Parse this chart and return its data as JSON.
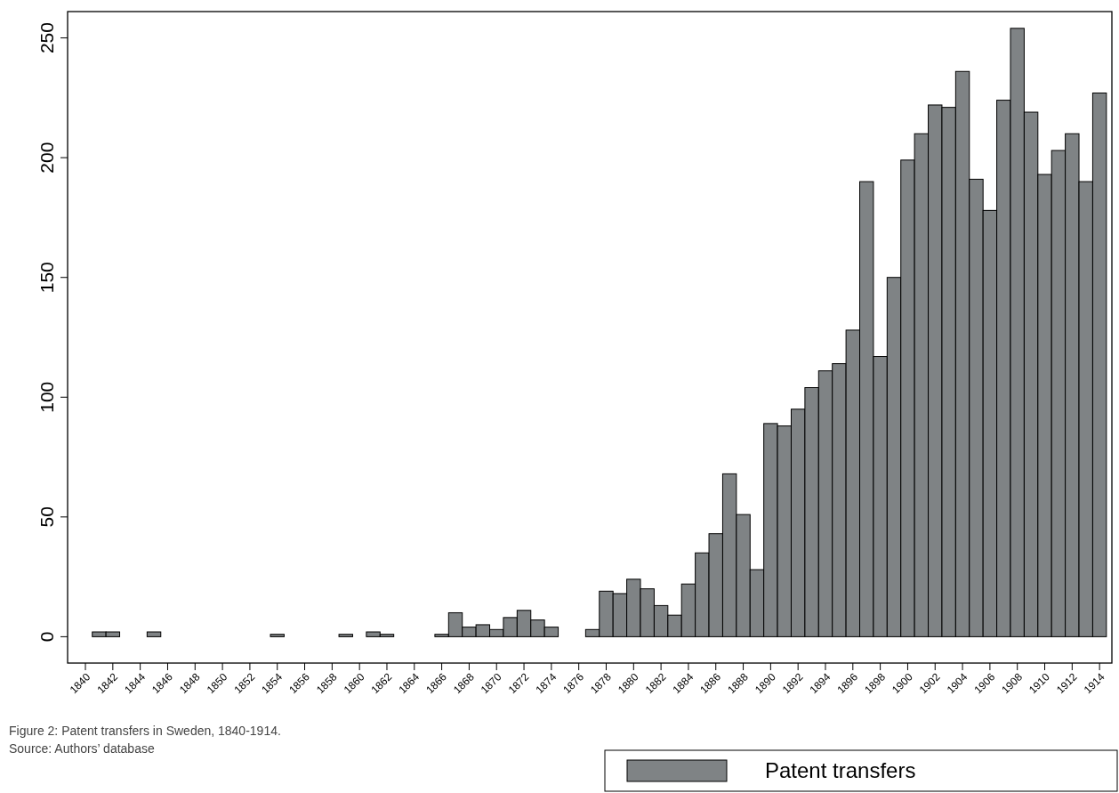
{
  "chart_data": {
    "type": "bar",
    "x": [
      1841,
      1842,
      1845,
      1854,
      1859,
      1861,
      1862,
      1866,
      1867,
      1868,
      1869,
      1870,
      1871,
      1872,
      1873,
      1874,
      1877,
      1878,
      1879,
      1880,
      1881,
      1882,
      1883,
      1884,
      1885,
      1886,
      1887,
      1888,
      1889,
      1890,
      1891,
      1892,
      1893,
      1894,
      1895,
      1896,
      1897,
      1898,
      1899,
      1900,
      1901,
      1902,
      1903,
      1904,
      1905,
      1906,
      1907,
      1908,
      1909,
      1910,
      1911,
      1912,
      1913,
      1914
    ],
    "series": [
      {
        "name": "Patent transfers",
        "color": "#7f8385",
        "values": [
          2,
          2,
          2,
          1,
          1,
          2,
          1,
          1,
          10,
          4,
          5,
          3,
          8,
          11,
          7,
          4,
          3,
          19,
          18,
          24,
          20,
          13,
          9,
          22,
          35,
          43,
          68,
          51,
          28,
          89,
          88,
          95,
          104,
          111,
          114,
          128,
          190,
          117,
          150,
          199,
          210,
          222,
          221,
          236,
          191,
          178,
          224,
          254,
          219,
          193,
          203,
          210,
          190,
          227
        ]
      }
    ],
    "xlim": [
      1838.7,
      1914.9
    ],
    "ylim": [
      -11,
      261
    ],
    "xticks": [
      1840,
      1842,
      1844,
      1846,
      1848,
      1850,
      1852,
      1854,
      1856,
      1858,
      1860,
      1862,
      1864,
      1866,
      1868,
      1870,
      1872,
      1874,
      1876,
      1878,
      1880,
      1882,
      1884,
      1886,
      1888,
      1890,
      1892,
      1894,
      1896,
      1898,
      1900,
      1902,
      1904,
      1906,
      1908,
      1910,
      1912,
      1914
    ],
    "yticks": [
      0,
      50,
      100,
      150,
      200,
      250
    ],
    "legend": "bottom right",
    "annotations": [
      "Figure 2: Patent transfers in Sweden, 1840-1914.",
      "Source: Authors’ database"
    ]
  }
}
